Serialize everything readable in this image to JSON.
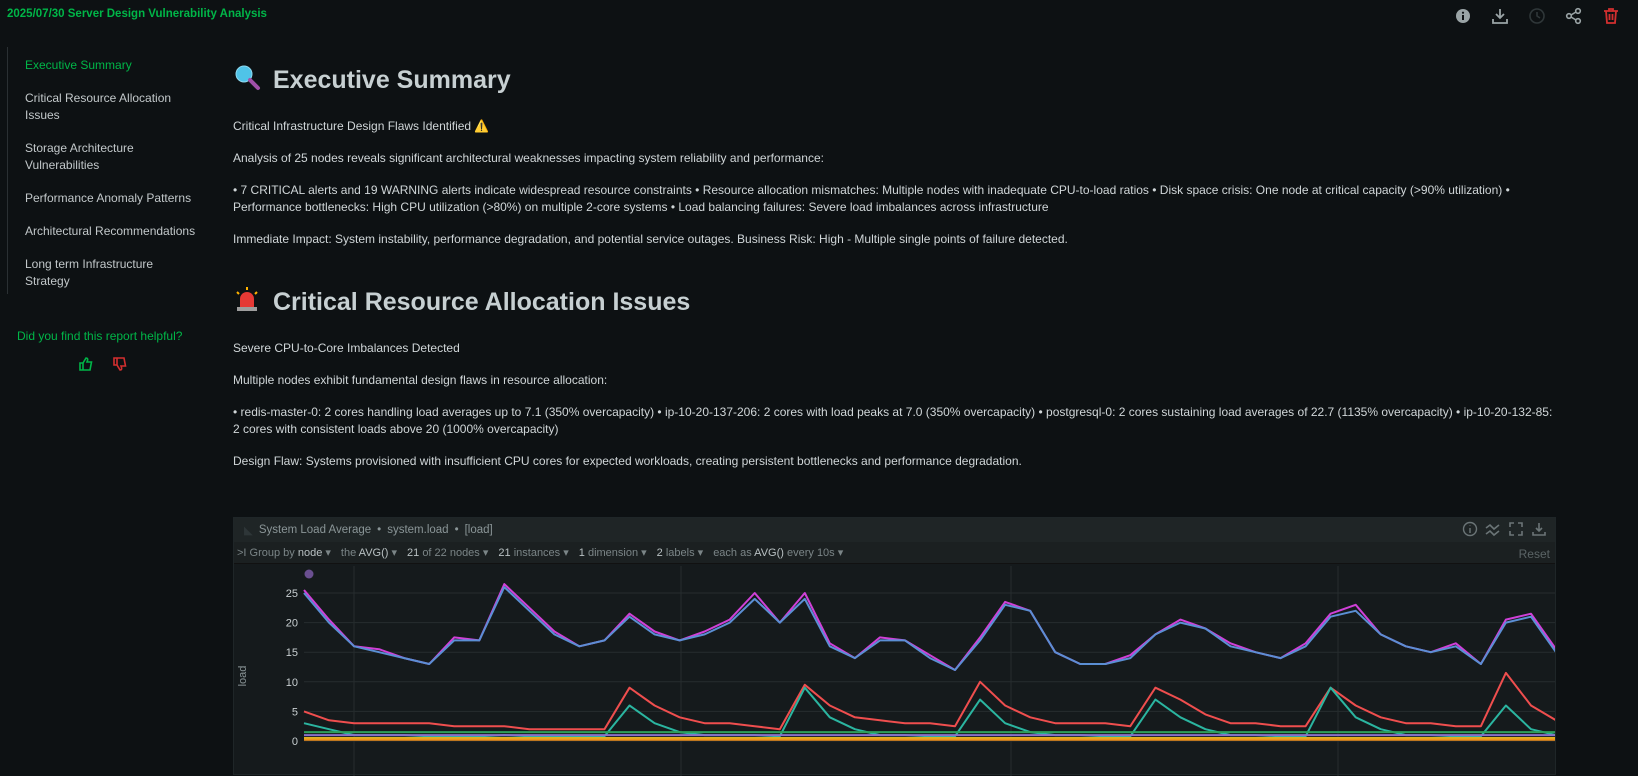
{
  "app": {
    "title": "2025/07/30 Server Design Vulnerability Analysis",
    "toolbar": [
      {
        "icon": "info-icon"
      },
      {
        "icon": "download-icon"
      },
      {
        "icon": "history-icon"
      },
      {
        "icon": "share-icon"
      },
      {
        "icon": "trash-icon",
        "color": "#d32f2f"
      }
    ]
  },
  "sidebar": {
    "items": [
      {
        "label": "Executive Summary",
        "active": true
      },
      {
        "label": "Critical Resource Allocation Issues"
      },
      {
        "label": "Storage Architecture Vulnerabilities"
      },
      {
        "label": "Performance Anomaly Patterns"
      },
      {
        "label": "Architectural Recommendations"
      },
      {
        "label": "Long term Infrastructure Strategy"
      }
    ],
    "feedback": "Did you find this report helpful?"
  },
  "sections": [
    {
      "title": "Executive Summary",
      "icon": "magnifier-icon",
      "paragraphs": [
        "Critical Infrastructure Design Flaws Identified ⚠️",
        "Analysis of 25 nodes reveals significant architectural weaknesses impacting system reliability and performance:",
        "• 7 CRITICAL alerts and 19 WARNING alerts indicate widespread resource constraints • Resource allocation mismatches: Multiple nodes with inadequate CPU-to-load ratios • Disk space crisis: One node at critical capacity (>90% utilization) • Performance bottlenecks: High CPU utilization (>80%) on multiple 2-core systems • Load balancing failures: Severe load imbalances across infrastructure",
        "Immediate Impact: System instability, performance degradation, and potential service outages. Business Risk: High - Multiple single points of failure detected."
      ]
    },
    {
      "title": "Critical Resource Allocation Issues",
      "icon": "siren-icon",
      "paragraphs": [
        "Severe CPU-to-Core Imbalances Detected",
        "Multiple nodes exhibit fundamental design flaws in resource allocation:",
        "• redis-master-0: 2 cores handling load averages up to 7.1 (350% overcapacity) • ip-10-20-137-206: 2 cores with load peaks at 7.0 (350% overcapacity) • postgresql-0: 2 cores sustaining load averages of 22.7 (1135% overcapacity) • ip-10-20-132-85: 2 cores with consistent loads above 20 (1000% overcapacity)",
        "Design Flaw: Systems provisioned with insufficient CPU cores for expected workloads, creating persistent bottlenecks and performance degradation."
      ]
    }
  ],
  "chart_widget": {
    "title": "System Load Average",
    "context": "system.load",
    "units": "[load]",
    "controls": {
      "prefix": ">I Group by",
      "group": "node",
      "the": "the",
      "agg": "AVG()",
      "nodes_n": "21",
      "nodes_rest": "of 22 nodes",
      "inst_n": "21",
      "inst_rest": "instances",
      "dim_n": "1",
      "dim_rest": "dimension",
      "lab_n": "2",
      "lab_rest": "labels",
      "each": "each as",
      "each_agg": "AVG()",
      "every": "every 10s"
    },
    "reset": "Reset"
  },
  "chart_data": {
    "type": "line",
    "ylabel": "load",
    "ylim": [
      0,
      27
    ],
    "yticks": [
      "0",
      "5",
      "10",
      "15",
      "20",
      "25"
    ],
    "grid": true,
    "series": [
      {
        "color": "#d040d8",
        "values": [
          25.5,
          20.5,
          16,
          15.5,
          14,
          13,
          17.5,
          17,
          26.5,
          22.5,
          18.5,
          16,
          17,
          21.5,
          18.5,
          17,
          18.5,
          20.5,
          25,
          20,
          25,
          16.5,
          14,
          17.5,
          17,
          14.5,
          12,
          17.5,
          23.5,
          22,
          15,
          13,
          13,
          14.5,
          18,
          20.5,
          19,
          16.5,
          15,
          14,
          16.5,
          21.5,
          23,
          18,
          16,
          15,
          16.5,
          13,
          20.5,
          21.5,
          15.5
        ]
      },
      {
        "color": "#5b8fd4",
        "values": [
          25,
          20,
          16,
          15,
          14,
          13,
          17,
          17,
          26,
          22,
          18,
          16,
          17,
          21,
          18,
          17,
          18,
          20,
          24,
          20,
          24,
          16,
          14,
          17,
          17,
          14,
          12,
          17,
          23,
          22,
          15,
          13,
          13,
          14,
          18,
          20,
          19,
          16,
          15,
          14,
          16,
          21,
          22,
          18,
          16,
          15,
          16,
          13,
          20,
          21,
          15
        ]
      },
      {
        "color": "#ef4e4e",
        "values": [
          5,
          3.5,
          3,
          3,
          3,
          3,
          2.5,
          2.5,
          2.5,
          2,
          2,
          2,
          2,
          9,
          6,
          4,
          3,
          3,
          2.5,
          2,
          9.5,
          6,
          4,
          3.5,
          3,
          3,
          2.5,
          10,
          6,
          4,
          3,
          3,
          3,
          2.5,
          9,
          7,
          4.5,
          3,
          3,
          2.5,
          2.5,
          9,
          6,
          4,
          3,
          3,
          2.5,
          2.5,
          11.5,
          6,
          3.5
        ]
      },
      {
        "color": "#2bb5a0",
        "values": [
          3,
          2,
          1,
          1,
          1,
          0.8,
          0.8,
          0.8,
          1,
          0.8,
          0.8,
          0.8,
          0.8,
          6,
          3,
          1.5,
          1,
          1,
          1,
          0.8,
          9,
          4,
          2,
          1,
          1,
          0.8,
          0.8,
          7,
          3,
          1.5,
          1,
          1,
          0.8,
          0.8,
          7,
          4,
          2,
          1,
          1,
          0.8,
          0.8,
          9,
          4,
          2,
          1,
          1,
          0.8,
          0.8,
          6,
          2,
          1
        ]
      },
      {
        "color": "#2e9e5a",
        "values": [
          1.5,
          1.5,
          1.5,
          1.5,
          1.5,
          1.5,
          1.5,
          1.5,
          1.5,
          1.5,
          1.5,
          1.5,
          1.5,
          1.5,
          1.5,
          1.5,
          1.5,
          1.5,
          1.5,
          1.5,
          1.5,
          1.5,
          1.5,
          1.5,
          1.5,
          1.5,
          1.5,
          1.5,
          1.5,
          1.5,
          1.5,
          1.5,
          1.5,
          1.5,
          1.5,
          1.5,
          1.5,
          1.5,
          1.5,
          1.5,
          1.5,
          1.5,
          1.5,
          1.5,
          1.5,
          1.5,
          1.5,
          1.5,
          1.5,
          1.5,
          1.5
        ]
      },
      {
        "color": "#8a6fc8",
        "values": [
          1,
          1,
          1,
          1,
          1,
          1,
          1,
          1,
          1,
          1,
          1,
          1,
          1,
          1,
          1,
          1,
          1,
          1,
          1,
          1,
          1,
          1,
          1,
          1,
          1,
          1,
          1,
          1,
          1,
          1,
          1,
          1,
          1,
          1,
          1,
          1,
          1,
          1,
          1,
          1,
          1,
          1,
          1,
          1,
          1,
          1,
          1,
          1,
          1,
          1,
          1
        ]
      },
      {
        "color": "#e0b020",
        "values": [
          0.5,
          0.5,
          0.5,
          0.5,
          0.5,
          0.5,
          0.5,
          0.5,
          0.5,
          0.5,
          0.5,
          0.5,
          0.5,
          0.5,
          0.5,
          0.5,
          0.5,
          0.5,
          0.5,
          0.5,
          0.5,
          0.5,
          0.5,
          0.5,
          0.5,
          0.5,
          0.5,
          0.5,
          0.5,
          0.5,
          0.5,
          0.5,
          0.5,
          0.5,
          0.5,
          0.5,
          0.5,
          0.5,
          0.5,
          0.5,
          0.5,
          0.5,
          0.5,
          0.5,
          0.5,
          0.5,
          0.5,
          0.5,
          0.5,
          0.5,
          0.5
        ]
      },
      {
        "color": "#f0901a",
        "values": [
          0.2,
          0.2,
          0.2,
          0.2,
          0.2,
          0.2,
          0.2,
          0.2,
          0.2,
          0.2,
          0.2,
          0.2,
          0.2,
          0.2,
          0.2,
          0.2,
          0.2,
          0.2,
          0.2,
          0.2,
          0.2,
          0.2,
          0.2,
          0.2,
          0.2,
          0.2,
          0.2,
          0.2,
          0.2,
          0.2,
          0.2,
          0.2,
          0.2,
          0.2,
          0.2,
          0.2,
          0.2,
          0.2,
          0.2,
          0.2,
          0.2,
          0.2,
          0.2,
          0.2,
          0.2,
          0.2,
          0.2,
          0.2,
          0.2,
          0.2,
          0.2
        ]
      }
    ]
  }
}
